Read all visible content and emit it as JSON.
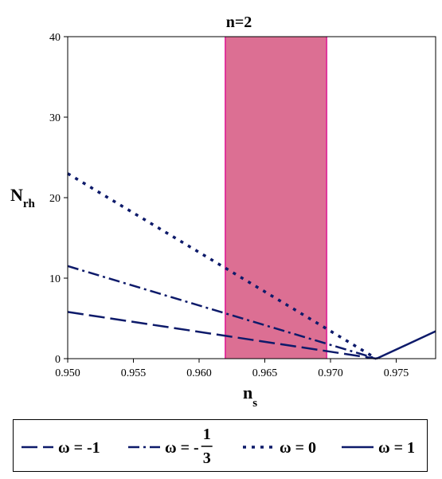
{
  "chart_data": {
    "type": "line",
    "title": "n=2",
    "xlabel": {
      "main": "n",
      "sub": "s"
    },
    "ylabel": {
      "main": "N",
      "sub": "rh"
    },
    "xlim": [
      0.95,
      0.978
    ],
    "ylim": [
      0,
      40
    ],
    "xticks": [
      0.95,
      0.955,
      0.96,
      0.965,
      0.97,
      0.975
    ],
    "xtick_labels": [
      "0.950",
      "0.955",
      "0.960",
      "0.965",
      "0.970",
      "0.975"
    ],
    "yticks": [
      0,
      10,
      20,
      30,
      40
    ],
    "ytick_labels": [
      "0",
      "10",
      "20",
      "30",
      "40"
    ],
    "shaded_band": {
      "x": [
        0.962,
        0.9697
      ],
      "color": "#dc6f93",
      "edge_color": "#e0359b"
    },
    "line_color": "#0d1a6a",
    "series": [
      {
        "name": "ω = -1",
        "dash": "dashed",
        "x": [
          0.95,
          0.9735
        ],
        "y": [
          5.8,
          0
        ]
      },
      {
        "name": "ω = -1/3",
        "dash": "dashdot",
        "x": [
          0.95,
          0.9735
        ],
        "y": [
          11.5,
          0
        ]
      },
      {
        "name": "ω = 0",
        "dash": "dotted",
        "x": [
          0.95,
          0.9735
        ],
        "y": [
          23.0,
          0
        ]
      },
      {
        "name": "ω = 1",
        "dash": "solid",
        "x": [
          0.9735,
          0.978
        ],
        "y": [
          0,
          3.4
        ]
      }
    ],
    "legend": {
      "position": "bottom",
      "items": [
        {
          "prefix": "ω = -",
          "frac_num": "",
          "frac_den": "",
          "value": "1"
        },
        {
          "prefix": "ω = -",
          "frac_num": "1",
          "frac_den": "3",
          "value": ""
        },
        {
          "prefix": "ω = ",
          "frac_num": "",
          "frac_den": "",
          "value": "0"
        },
        {
          "prefix": "ω = ",
          "frac_num": "",
          "frac_den": "",
          "value": "1"
        }
      ]
    }
  }
}
